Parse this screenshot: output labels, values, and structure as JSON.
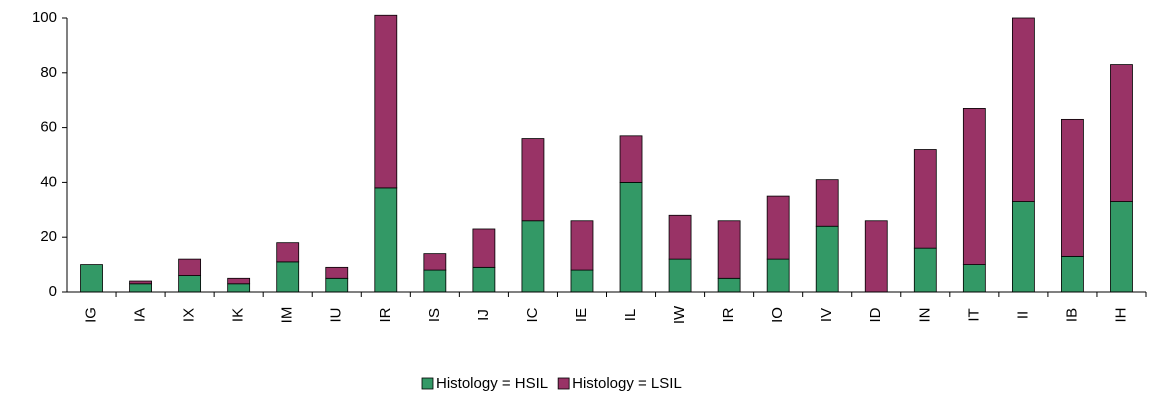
{
  "chart_data": {
    "type": "stacked_bar",
    "categories": [
      "IG",
      "IA",
      "IX",
      "IK",
      "IM",
      "IU",
      "IR",
      "IS",
      "IJ",
      "IC",
      "IE",
      "IL",
      "IW",
      "IR",
      "IO",
      "IV",
      "ID",
      "IN",
      "IT",
      "II",
      "IB",
      "IH"
    ],
    "series": [
      {
        "name": "Histology = HSIL",
        "color": "#339966",
        "values": [
          10,
          3,
          6,
          3,
          11,
          5,
          38,
          8,
          9,
          26,
          8,
          40,
          12,
          5,
          12,
          24,
          0,
          16,
          10,
          33,
          13,
          33
        ]
      },
      {
        "name": "Histology = LSIL",
        "color": "#993366",
        "values": [
          0,
          1,
          6,
          2,
          7,
          4,
          63,
          6,
          14,
          30,
          18,
          17,
          16,
          21,
          23,
          17,
          26,
          36,
          57,
          67,
          50,
          50
        ]
      }
    ],
    "ylim": [
      0,
      100
    ],
    "yticks": [
      0,
      20,
      40,
      60,
      80,
      100
    ],
    "legend": "bottom"
  }
}
